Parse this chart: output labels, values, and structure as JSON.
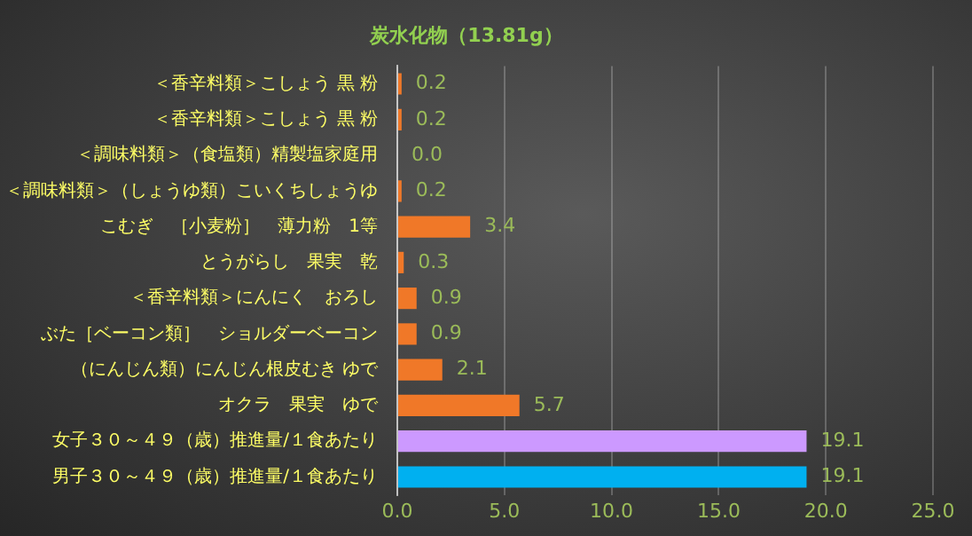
{
  "chart_data": {
    "type": "bar",
    "orientation": "horizontal",
    "title": "炭水化物（13.81g）",
    "categories": [
      "＜香辛料類＞こしょう 黒 粉",
      "＜香辛料類＞こしょう 黒 粉",
      "＜調味料類＞（食塩類）精製塩家庭用",
      "＜調味料類＞（しょうゆ類）こいくちしょうゆ",
      "こむぎ　［小麦粉］　薄力粉　1等",
      "とうがらし　果実　乾",
      "＜香辛料類＞にんにく　おろし",
      "ぶた［ベーコン類］　ショルダーベーコン",
      "（にんじん類）にんじん根皮むき ゆで",
      "オクラ　果実　ゆで",
      "女子３０～４９（歳）推進量/１食あたり",
      "男子３０～４９（歳）推進量/１食あたり"
    ],
    "values": [
      0.2,
      0.2,
      0.0,
      0.2,
      3.4,
      0.3,
      0.9,
      0.9,
      2.1,
      5.7,
      19.1,
      19.1
    ],
    "value_labels": [
      "0.2",
      "0.2",
      "0.0",
      "0.2",
      "3.4",
      "0.3",
      "0.9",
      "0.9",
      "2.1",
      "5.7",
      "19.1",
      "19.1"
    ],
    "colors": [
      "#f07828",
      "#f07828",
      "#f07828",
      "#f07828",
      "#f07828",
      "#f07828",
      "#f07828",
      "#f07828",
      "#f07828",
      "#f07828",
      "#cc99ff",
      "#00b0f0"
    ],
    "xlim": [
      0,
      25
    ],
    "xticks": [
      {
        "value": 0,
        "label": "0.0"
      },
      {
        "value": 5,
        "label": "5.0"
      },
      {
        "value": 10,
        "label": "10.0"
      },
      {
        "value": 15,
        "label": "15.0"
      },
      {
        "value": 20,
        "label": "20.0"
      },
      {
        "value": 25,
        "label": "25.0"
      }
    ],
    "grid": "x",
    "legend": false
  }
}
